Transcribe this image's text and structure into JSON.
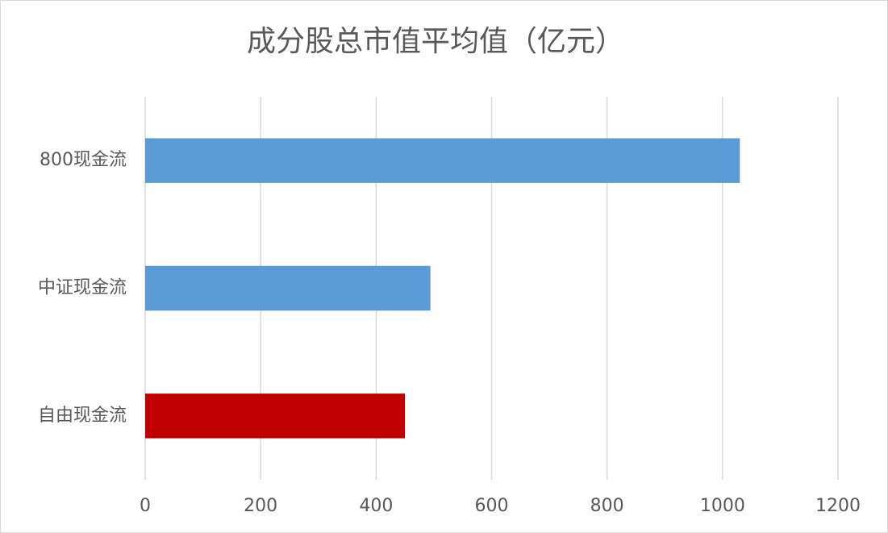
{
  "chart_data": {
    "type": "hbar",
    "title": "成分股总市值平均值（亿元）",
    "categories": [
      "800现金流",
      "中证现金流",
      "自由现金流"
    ],
    "values": [
      1030,
      494,
      450
    ],
    "colors": [
      "#5b9bd5",
      "#5b9bd5",
      "#c00000"
    ],
    "xlim": [
      0,
      1200
    ],
    "xticks": [
      0,
      200,
      400,
      600,
      800,
      1000,
      1200
    ],
    "grid": true
  }
}
